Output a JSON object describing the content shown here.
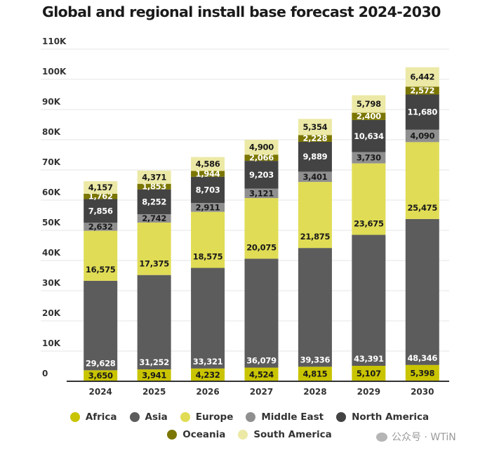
{
  "chart_data": {
    "type": "bar",
    "stacked": true,
    "title": "Global and regional install base forecast 2024-2030",
    "xlabel": "",
    "ylabel": "",
    "categories": [
      "2024",
      "2025",
      "2026",
      "2027",
      "2028",
      "2029",
      "2030"
    ],
    "ylim": [
      0,
      110000
    ],
    "yticks": [
      0,
      10000,
      20000,
      30000,
      40000,
      50000,
      60000,
      70000,
      80000,
      90000,
      100000,
      110000
    ],
    "ytick_labels": [
      "0",
      "10K",
      "20K",
      "30K",
      "40K",
      "50K",
      "60K",
      "70K",
      "80K",
      "90K",
      "100K",
      "110K"
    ],
    "grid": true,
    "legend_position": "bottom",
    "series": [
      {
        "name": "Africa",
        "color": "#c9c400",
        "label_color": "#1a1a1a",
        "values": [
          3650,
          3941,
          4232,
          4524,
          4815,
          5107,
          5398
        ],
        "labels": [
          "3,650",
          "3,941",
          "4,232",
          "4,524",
          "4,815",
          "5,107",
          "5,398"
        ]
      },
      {
        "name": "Asia",
        "color": "#5c5c5c",
        "label_color": "#ffffff",
        "values": [
          29628,
          31252,
          33321,
          36079,
          39336,
          43391,
          48346
        ],
        "labels": [
          "29,628",
          "31,252",
          "33,321",
          "36,079",
          "39,336",
          "43,391",
          "48,346"
        ]
      },
      {
        "name": "Europe",
        "color": "#e0dc55",
        "label_color": "#1a1a1a",
        "values": [
          16575,
          17375,
          18575,
          20075,
          21875,
          23675,
          25475
        ],
        "labels": [
          "16,575",
          "17,375",
          "18,575",
          "20,075",
          "21,875",
          "23,675",
          "25,475"
        ]
      },
      {
        "name": "Middle East",
        "color": "#8f8f8f",
        "label_color": "#1a1a1a",
        "values": [
          2632,
          2742,
          2911,
          3121,
          3401,
          3730,
          4090
        ],
        "labels": [
          "2,632",
          "2,742",
          "2,911",
          "3,121",
          "3,401",
          "3,730",
          "4,090"
        ]
      },
      {
        "name": "North America",
        "color": "#434343",
        "label_color": "#ffffff",
        "values": [
          7856,
          8252,
          8703,
          9203,
          9889,
          10634,
          11680
        ],
        "labels": [
          "7,856",
          "8,252",
          "8,703",
          "9,203",
          "9,889",
          "10,634",
          "11,680"
        ]
      },
      {
        "name": "Oceania",
        "color": "#7b7600",
        "label_color": "#ffffff",
        "values": [
          1762,
          1853,
          1944,
          2066,
          2228,
          2400,
          2572
        ],
        "labels": [
          "1,762",
          "1,853",
          "1,944",
          "2,066",
          "2,228",
          "2,400",
          "2,572"
        ]
      },
      {
        "name": "South America",
        "color": "#ece9a6",
        "label_color": "#1a1a1a",
        "values": [
          4157,
          4371,
          4586,
          4900,
          5354,
          5798,
          6442
        ],
        "labels": [
          "4,157",
          "4,371",
          "4,586",
          "4,900",
          "5,354",
          "5,798",
          "6,442"
        ]
      }
    ]
  },
  "legend": {
    "row1": [
      "Africa",
      "Asia",
      "Europe",
      "Middle East",
      "North America"
    ],
    "row2": [
      "Oceania",
      "South America"
    ]
  },
  "watermark": {
    "text": "公众号 · WTiN"
  }
}
